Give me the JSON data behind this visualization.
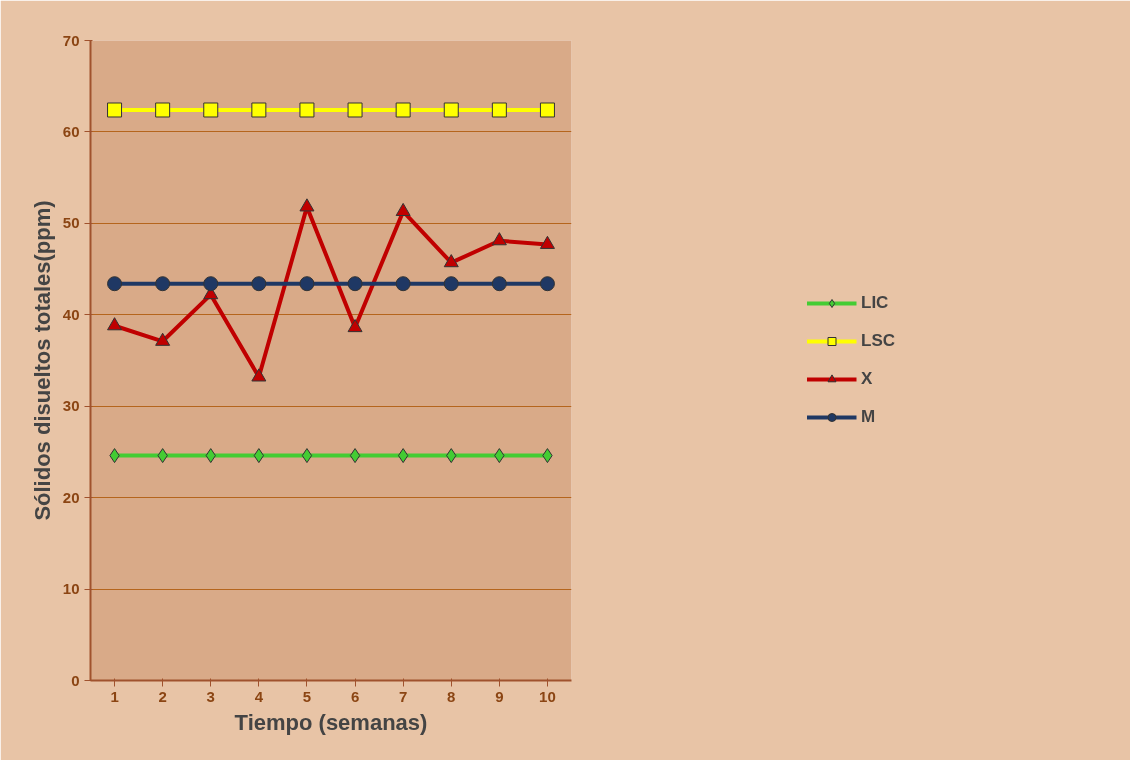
{
  "chart_data": {
    "type": "line",
    "xlabel": "Tiempo (semanas)",
    "ylabel": "Sólidos disueltos totales(ppm)",
    "categories": [
      "1",
      "2",
      "3",
      "4",
      "5",
      "6",
      "7",
      "8",
      "9",
      "10"
    ],
    "series": [
      {
        "name": "LIC",
        "color": "#44cc33",
        "marker": "diamond",
        "values": [
          24.6,
          24.6,
          24.6,
          24.6,
          24.6,
          24.6,
          24.6,
          24.6,
          24.6,
          24.6
        ]
      },
      {
        "name": "LSC",
        "color": "#ffff00",
        "marker": "square",
        "values": [
          62.4,
          62.4,
          62.4,
          62.4,
          62.4,
          62.4,
          62.4,
          62.4,
          62.4,
          62.4
        ]
      },
      {
        "name": "X",
        "color": "#c00000",
        "marker": "triangle",
        "values": [
          38.8,
          37.1,
          42.2,
          33.2,
          51.8,
          38.6,
          51.3,
          45.7,
          48.1,
          47.7
        ]
      },
      {
        "name": "M",
        "color": "#1f3864",
        "marker": "circle",
        "values": [
          43.4,
          43.4,
          43.4,
          43.4,
          43.4,
          43.4,
          43.4,
          43.4,
          43.4,
          43.4
        ]
      }
    ],
    "ylim": [
      0,
      70
    ],
    "yticks": [
      0,
      10,
      20,
      30,
      40,
      50,
      60,
      70
    ],
    "grid": "y",
    "legend": "right",
    "line_style": "solid"
  }
}
